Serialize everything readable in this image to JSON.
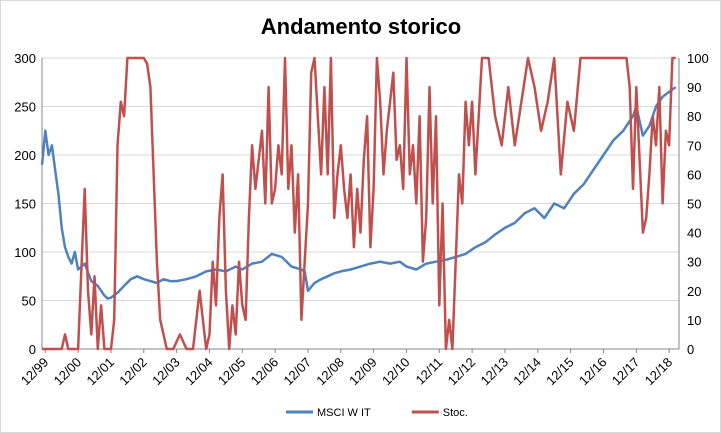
{
  "chart_data": {
    "type": "line",
    "title": "Andamento storico",
    "xlabel": "",
    "ylabel_left": "",
    "ylabel_right": "",
    "x_ticks": [
      "12/99",
      "12/00",
      "12/01",
      "12/02",
      "12/03",
      "12/04",
      "12/05",
      "12/06",
      "12/07",
      "12/08",
      "12/09",
      "12/10",
      "12/11",
      "12/12",
      "12/13",
      "12/14",
      "12/15",
      "12/16",
      "12/17",
      "12/18"
    ],
    "x_range": [
      1999.9,
      2019.3
    ],
    "y_left": {
      "range": [
        0,
        300
      ],
      "ticks": [
        "0",
        "50",
        "100",
        "150",
        "200",
        "250",
        "300"
      ],
      "gridlines": true
    },
    "y_right": {
      "range": [
        0,
        100
      ],
      "ticks": [
        "0",
        "10",
        "20",
        "30",
        "40",
        "50",
        "60",
        "70",
        "80",
        "90",
        "100"
      ]
    },
    "legend": {
      "position": "bottom"
    },
    "colors": {
      "msci": "#4f81bd",
      "stoc": "#c0504d"
    },
    "series": [
      {
        "name": "MSCI W IT",
        "axis": "left",
        "x": [
          1999.9,
          2000.0,
          2000.1,
          2000.2,
          2000.3,
          2000.4,
          2000.5,
          2000.6,
          2000.7,
          2000.8,
          2000.9,
          2001.0,
          2001.2,
          2001.4,
          2001.6,
          2001.8,
          2001.9,
          2002.0,
          2002.2,
          2002.4,
          2002.6,
          2002.8,
          2003.0,
          2003.2,
          2003.4,
          2003.6,
          2003.8,
          2004.0,
          2004.3,
          2004.6,
          2004.9,
          2005.2,
          2005.5,
          2005.8,
          2006.0,
          2006.3,
          2006.6,
          2006.9,
          2007.2,
          2007.5,
          2007.8,
          2007.9,
          2008.0,
          2008.2,
          2008.4,
          2008.6,
          2008.8,
          2009.0,
          2009.3,
          2009.6,
          2009.9,
          2010.2,
          2010.5,
          2010.8,
          2011.0,
          2011.3,
          2011.6,
          2011.9,
          2012.2,
          2012.5,
          2012.8,
          2013.1,
          2013.4,
          2013.7,
          2014.0,
          2014.3,
          2014.6,
          2014.9,
          2015.2,
          2015.5,
          2015.8,
          2016.1,
          2016.4,
          2016.7,
          2017.0,
          2017.3,
          2017.6,
          2017.9,
          2018.0,
          2018.2,
          2018.4,
          2018.6,
          2018.8,
          2019.0,
          2019.2
        ],
        "values": [
          190,
          225,
          200,
          210,
          185,
          160,
          125,
          105,
          95,
          88,
          100,
          82,
          88,
          70,
          65,
          55,
          52,
          53,
          58,
          65,
          72,
          75,
          72,
          70,
          68,
          72,
          70,
          70,
          72,
          75,
          80,
          82,
          80,
          85,
          82,
          88,
          90,
          98,
          95,
          85,
          82,
          80,
          60,
          68,
          72,
          75,
          78,
          80,
          82,
          85,
          88,
          90,
          88,
          90,
          85,
          82,
          88,
          90,
          92,
          95,
          98,
          105,
          110,
          118,
          125,
          130,
          140,
          145,
          135,
          150,
          145,
          160,
          170,
          185,
          200,
          215,
          225,
          240,
          250,
          220,
          230,
          250,
          260,
          265,
          270
        ]
      },
      {
        "name": "Stoc.",
        "axis": "right",
        "x": [
          1999.9,
          2000.5,
          2000.6,
          2000.7,
          2001.0,
          2001.2,
          2001.3,
          2001.4,
          2001.5,
          2001.6,
          2001.7,
          2001.8,
          2002.0,
          2002.1,
          2002.2,
          2002.3,
          2002.4,
          2002.5,
          2002.7,
          2003.0,
          2003.1,
          2003.2,
          2003.4,
          2003.5,
          2003.7,
          2003.9,
          2004.1,
          2004.3,
          2004.5,
          2004.7,
          2004.9,
          2005.0,
          2005.1,
          2005.2,
          2005.3,
          2005.4,
          2005.5,
          2005.6,
          2005.7,
          2005.8,
          2005.9,
          2006.0,
          2006.1,
          2006.2,
          2006.3,
          2006.4,
          2006.5,
          2006.6,
          2006.7,
          2006.8,
          2006.9,
          2007.0,
          2007.1,
          2007.2,
          2007.3,
          2007.4,
          2007.5,
          2007.6,
          2007.7,
          2007.8,
          2007.9,
          2008.0,
          2008.1,
          2008.2,
          2008.3,
          2008.4,
          2008.5,
          2008.6,
          2008.7,
          2008.8,
          2008.9,
          2009.0,
          2009.1,
          2009.2,
          2009.3,
          2009.4,
          2009.5,
          2009.6,
          2009.7,
          2009.8,
          2009.9,
          2010.0,
          2010.1,
          2010.2,
          2010.3,
          2010.4,
          2010.5,
          2010.6,
          2010.7,
          2010.8,
          2010.9,
          2011.0,
          2011.1,
          2011.2,
          2011.3,
          2011.4,
          2011.5,
          2011.6,
          2011.7,
          2011.8,
          2011.9,
          2012.0,
          2012.1,
          2012.2,
          2012.3,
          2012.4,
          2012.5,
          2012.6,
          2012.7,
          2012.8,
          2012.9,
          2013.0,
          2013.1,
          2013.3,
          2013.5,
          2013.7,
          2013.9,
          2014.1,
          2014.3,
          2014.5,
          2014.7,
          2014.9,
          2015.1,
          2015.3,
          2015.5,
          2015.7,
          2015.9,
          2016.1,
          2016.3,
          2016.5,
          2016.7,
          2016.9,
          2017.1,
          2017.3,
          2017.5,
          2017.7,
          2017.8,
          2017.9,
          2018.0,
          2018.1,
          2018.2,
          2018.3,
          2018.4,
          2018.5,
          2018.6,
          2018.7,
          2018.8,
          2018.9,
          2019.0,
          2019.1,
          2019.2
        ],
        "values": [
          0,
          0,
          5,
          0,
          0,
          55,
          20,
          5,
          25,
          0,
          15,
          0,
          0,
          10,
          70,
          85,
          80,
          100,
          100,
          100,
          98,
          90,
          30,
          10,
          0,
          0,
          5,
          0,
          0,
          20,
          0,
          5,
          30,
          15,
          45,
          60,
          20,
          0,
          15,
          5,
          30,
          15,
          10,
          45,
          70,
          55,
          65,
          75,
          50,
          90,
          50,
          55,
          70,
          60,
          100,
          55,
          70,
          40,
          60,
          10,
          30,
          50,
          95,
          100,
          80,
          60,
          90,
          60,
          100,
          45,
          60,
          70,
          55,
          45,
          60,
          35,
          55,
          40,
          65,
          80,
          35,
          55,
          100,
          85,
          60,
          75,
          85,
          95,
          65,
          70,
          55,
          100,
          60,
          70,
          50,
          80,
          30,
          45,
          90,
          50,
          80,
          15,
          50,
          0,
          10,
          0,
          30,
          60,
          50,
          85,
          70,
          85,
          60,
          100,
          100,
          80,
          70,
          90,
          70,
          85,
          100,
          90,
          75,
          85,
          100,
          60,
          85,
          75,
          100,
          100,
          100,
          100,
          100,
          100,
          100,
          100,
          90,
          55,
          90,
          65,
          40,
          45,
          60,
          80,
          70,
          90,
          50,
          75,
          70,
          100,
          100
        ]
      }
    ]
  }
}
